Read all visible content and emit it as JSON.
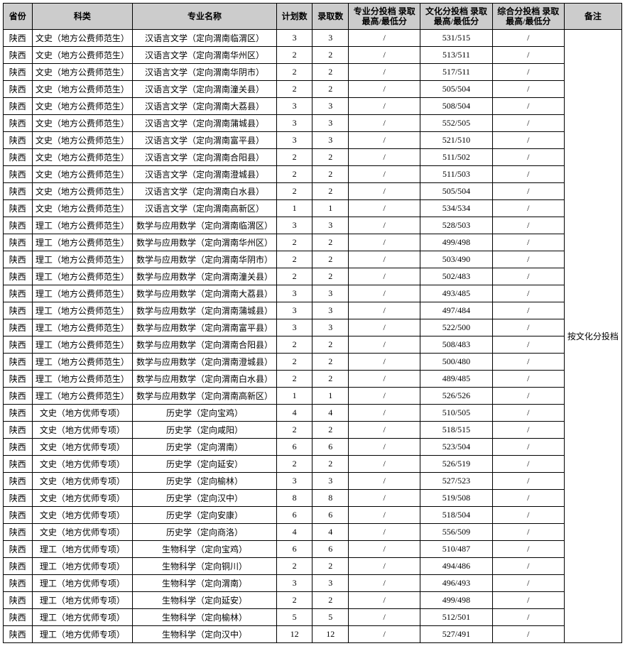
{
  "headers": {
    "province": "省份",
    "category": "科类",
    "major": "专业名称",
    "plan": "计划数",
    "admitted": "录取数",
    "score_spec": "专业分投档\n录取最高/最低分",
    "score_cult": "文化分投档\n录取最高/最低分",
    "score_comp": "综合分投档\n录取最高/最低分",
    "note": "备注"
  },
  "note_text": "按文化分投档",
  "rows": [
    {
      "prov": "陕西",
      "cat": "文史（地方公费师范生）",
      "maj": "汉语言文学（定向渭南临渭区）",
      "plan": 3,
      "adm": 3,
      "s1": "/",
      "s2": "531/515",
      "s3": "/"
    },
    {
      "prov": "陕西",
      "cat": "文史（地方公费师范生）",
      "maj": "汉语言文学（定向渭南华州区）",
      "plan": 2,
      "adm": 2,
      "s1": "/",
      "s2": "513/511",
      "s3": "/"
    },
    {
      "prov": "陕西",
      "cat": "文史（地方公费师范生）",
      "maj": "汉语言文学（定向渭南华阴市）",
      "plan": 2,
      "adm": 2,
      "s1": "/",
      "s2": "517/511",
      "s3": "/"
    },
    {
      "prov": "陕西",
      "cat": "文史（地方公费师范生）",
      "maj": "汉语言文学（定向渭南潼关县）",
      "plan": 2,
      "adm": 2,
      "s1": "/",
      "s2": "505/504",
      "s3": "/"
    },
    {
      "prov": "陕西",
      "cat": "文史（地方公费师范生）",
      "maj": "汉语言文学（定向渭南大荔县）",
      "plan": 3,
      "adm": 3,
      "s1": "/",
      "s2": "508/504",
      "s3": "/"
    },
    {
      "prov": "陕西",
      "cat": "文史（地方公费师范生）",
      "maj": "汉语言文学（定向渭南蒲城县）",
      "plan": 3,
      "adm": 3,
      "s1": "/",
      "s2": "552/505",
      "s3": "/"
    },
    {
      "prov": "陕西",
      "cat": "文史（地方公费师范生）",
      "maj": "汉语言文学（定向渭南富平县）",
      "plan": 3,
      "adm": 3,
      "s1": "/",
      "s2": "521/510",
      "s3": "/"
    },
    {
      "prov": "陕西",
      "cat": "文史（地方公费师范生）",
      "maj": "汉语言文学（定向渭南合阳县）",
      "plan": 2,
      "adm": 2,
      "s1": "/",
      "s2": "511/502",
      "s3": "/"
    },
    {
      "prov": "陕西",
      "cat": "文史（地方公费师范生）",
      "maj": "汉语言文学（定向渭南澄城县）",
      "plan": 2,
      "adm": 2,
      "s1": "/",
      "s2": "511/503",
      "s3": "/"
    },
    {
      "prov": "陕西",
      "cat": "文史（地方公费师范生）",
      "maj": "汉语言文学（定向渭南白水县）",
      "plan": 2,
      "adm": 2,
      "s1": "/",
      "s2": "505/504",
      "s3": "/"
    },
    {
      "prov": "陕西",
      "cat": "文史（地方公费师范生）",
      "maj": "汉语言文学（定向渭南高新区）",
      "plan": 1,
      "adm": 1,
      "s1": "/",
      "s2": "534/534",
      "s3": "/"
    },
    {
      "prov": "陕西",
      "cat": "理工（地方公费师范生）",
      "maj": "数学与应用数学（定向渭南临渭区）",
      "plan": 3,
      "adm": 3,
      "s1": "/",
      "s2": "528/503",
      "s3": "/"
    },
    {
      "prov": "陕西",
      "cat": "理工（地方公费师范生）",
      "maj": "数学与应用数学（定向渭南华州区）",
      "plan": 2,
      "adm": 2,
      "s1": "/",
      "s2": "499/498",
      "s3": "/"
    },
    {
      "prov": "陕西",
      "cat": "理工（地方公费师范生）",
      "maj": "数学与应用数学（定向渭南华阴市）",
      "plan": 2,
      "adm": 2,
      "s1": "/",
      "s2": "503/490",
      "s3": "/"
    },
    {
      "prov": "陕西",
      "cat": "理工（地方公费师范生）",
      "maj": "数学与应用数学（定向渭南潼关县）",
      "plan": 2,
      "adm": 2,
      "s1": "/",
      "s2": "502/483",
      "s3": "/"
    },
    {
      "prov": "陕西",
      "cat": "理工（地方公费师范生）",
      "maj": "数学与应用数学（定向渭南大荔县）",
      "plan": 3,
      "adm": 3,
      "s1": "/",
      "s2": "493/485",
      "s3": "/"
    },
    {
      "prov": "陕西",
      "cat": "理工（地方公费师范生）",
      "maj": "数学与应用数学（定向渭南蒲城县）",
      "plan": 3,
      "adm": 3,
      "s1": "/",
      "s2": "497/484",
      "s3": "/"
    },
    {
      "prov": "陕西",
      "cat": "理工（地方公费师范生）",
      "maj": "数学与应用数学（定向渭南富平县）",
      "plan": 3,
      "adm": 3,
      "s1": "/",
      "s2": "522/500",
      "s3": "/"
    },
    {
      "prov": "陕西",
      "cat": "理工（地方公费师范生）",
      "maj": "数学与应用数学（定向渭南合阳县）",
      "plan": 2,
      "adm": 2,
      "s1": "/",
      "s2": "508/483",
      "s3": "/"
    },
    {
      "prov": "陕西",
      "cat": "理工（地方公费师范生）",
      "maj": "数学与应用数学（定向渭南澄城县）",
      "plan": 2,
      "adm": 2,
      "s1": "/",
      "s2": "500/480",
      "s3": "/"
    },
    {
      "prov": "陕西",
      "cat": "理工（地方公费师范生）",
      "maj": "数学与应用数学（定向渭南白水县）",
      "plan": 2,
      "adm": 2,
      "s1": "/",
      "s2": "489/485",
      "s3": "/"
    },
    {
      "prov": "陕西",
      "cat": "理工（地方公费师范生）",
      "maj": "数学与应用数学（定向渭南高新区）",
      "plan": 1,
      "adm": 1,
      "s1": "/",
      "s2": "526/526",
      "s3": "/"
    },
    {
      "prov": "陕西",
      "cat": "文史（地方优师专项）",
      "maj": "历史学（定向宝鸡）",
      "plan": 4,
      "adm": 4,
      "s1": "/",
      "s2": "510/505",
      "s3": "/"
    },
    {
      "prov": "陕西",
      "cat": "文史（地方优师专项）",
      "maj": "历史学（定向咸阳）",
      "plan": 2,
      "adm": 2,
      "s1": "/",
      "s2": "518/515",
      "s3": "/"
    },
    {
      "prov": "陕西",
      "cat": "文史（地方优师专项）",
      "maj": "历史学（定向渭南）",
      "plan": 6,
      "adm": 6,
      "s1": "/",
      "s2": "523/504",
      "s3": "/"
    },
    {
      "prov": "陕西",
      "cat": "文史（地方优师专项）",
      "maj": "历史学（定向延安）",
      "plan": 2,
      "adm": 2,
      "s1": "/",
      "s2": "526/519",
      "s3": "/"
    },
    {
      "prov": "陕西",
      "cat": "文史（地方优师专项）",
      "maj": "历史学（定向榆林）",
      "plan": 3,
      "adm": 3,
      "s1": "/",
      "s2": "527/523",
      "s3": "/"
    },
    {
      "prov": "陕西",
      "cat": "文史（地方优师专项）",
      "maj": "历史学（定向汉中）",
      "plan": 8,
      "adm": 8,
      "s1": "/",
      "s2": "519/508",
      "s3": "/"
    },
    {
      "prov": "陕西",
      "cat": "文史（地方优师专项）",
      "maj": "历史学（定向安康）",
      "plan": 6,
      "adm": 6,
      "s1": "/",
      "s2": "518/504",
      "s3": "/"
    },
    {
      "prov": "陕西",
      "cat": "文史（地方优师专项）",
      "maj": "历史学（定向商洛）",
      "plan": 4,
      "adm": 4,
      "s1": "/",
      "s2": "556/509",
      "s3": "/"
    },
    {
      "prov": "陕西",
      "cat": "理工（地方优师专项）",
      "maj": "生物科学（定向宝鸡）",
      "plan": 6,
      "adm": 6,
      "s1": "/",
      "s2": "510/487",
      "s3": "/"
    },
    {
      "prov": "陕西",
      "cat": "理工（地方优师专项）",
      "maj": "生物科学（定向铜川）",
      "plan": 2,
      "adm": 2,
      "s1": "/",
      "s2": "494/486",
      "s3": "/"
    },
    {
      "prov": "陕西",
      "cat": "理工（地方优师专项）",
      "maj": "生物科学（定向渭南）",
      "plan": 3,
      "adm": 3,
      "s1": "/",
      "s2": "496/493",
      "s3": "/"
    },
    {
      "prov": "陕西",
      "cat": "理工（地方优师专项）",
      "maj": "生物科学（定向延安）",
      "plan": 2,
      "adm": 2,
      "s1": "/",
      "s2": "499/498",
      "s3": "/"
    },
    {
      "prov": "陕西",
      "cat": "理工（地方优师专项）",
      "maj": "生物科学（定向榆林）",
      "plan": 5,
      "adm": 5,
      "s1": "/",
      "s2": "512/501",
      "s3": "/"
    },
    {
      "prov": "陕西",
      "cat": "理工（地方优师专项）",
      "maj": "生物科学（定向汉中）",
      "plan": 12,
      "adm": 12,
      "s1": "/",
      "s2": "527/491",
      "s3": "/"
    }
  ]
}
